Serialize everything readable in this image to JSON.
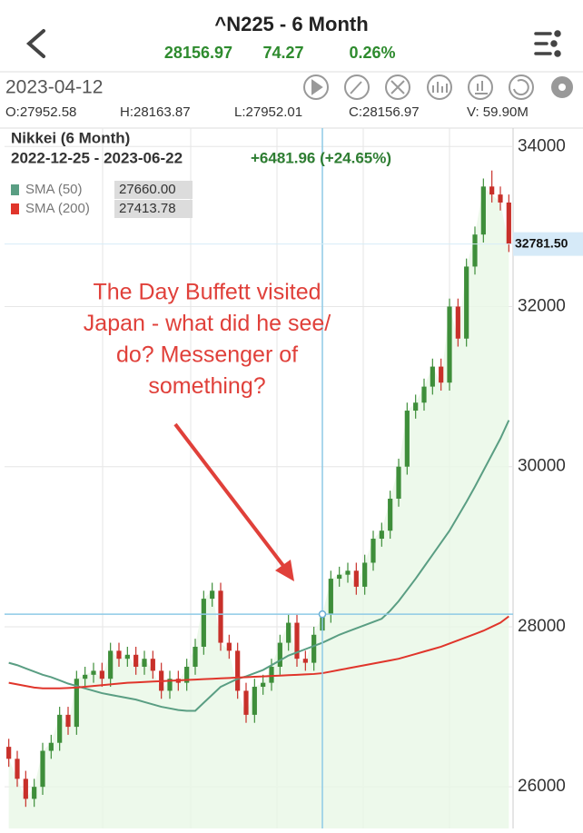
{
  "header": {
    "title": "^N225 - 6 Month",
    "price": "28156.97",
    "change": "74.27",
    "change_pct": "0.26%"
  },
  "toolbar": {
    "date": "2023-04-12",
    "ohlc": [
      "O:27952.58",
      "H:28163.87",
      "L:27952.01",
      "C:28156.97",
      "V: 59.90M"
    ]
  },
  "chart_data": {
    "type": "candlestick",
    "title": "Nikkei (6 Month)",
    "subtitle": "2022-12-25 - 2023-06-22",
    "period_change": "+6481.96 (+24.65%)",
    "annotation": [
      "The Day Buffett visited",
      "Japan - what did he see/",
      "do? Messenger of",
      "something?"
    ],
    "up_color": "#3e8e3a",
    "down_color": "#c8302a",
    "open": [
      26500,
      26350,
      26100,
      25850,
      26000,
      26450,
      26550,
      26900,
      26750,
      27350,
      27400,
      27450,
      27350,
      27700,
      27600,
      27650,
      27500,
      27600,
      27450,
      27200,
      27350,
      27300,
      27500,
      27750,
      28350,
      28450,
      27800,
      27700,
      27200,
      26900,
      27250,
      27300,
      27500,
      27800,
      28050,
      27600,
      27550,
      27952.58,
      28157,
      28600,
      28650,
      28700,
      28500,
      28800,
      29100,
      29200,
      29600,
      30000,
      30700,
      30800,
      31000,
      31250,
      31050,
      32000,
      31600,
      32500,
      32900,
      33500,
      33400,
      33300
    ],
    "high": [
      26600,
      26450,
      26200,
      26100,
      26550,
      26650,
      27000,
      27000,
      27450,
      27500,
      27550,
      27550,
      27800,
      27800,
      27750,
      27750,
      27700,
      27700,
      27550,
      27450,
      27450,
      27600,
      27850,
      28450,
      28550,
      28550,
      27900,
      27800,
      27300,
      27350,
      27400,
      27600,
      27900,
      28150,
      28150,
      27700,
      28000,
      28163.87,
      28700,
      28750,
      28800,
      28800,
      28900,
      29200,
      29300,
      29700,
      30100,
      30800,
      30900,
      31100,
      31350,
      31350,
      32100,
      32100,
      32600,
      33000,
      33600,
      33700,
      33500,
      33400
    ],
    "low": [
      26250,
      26000,
      25750,
      25750,
      25900,
      26350,
      26450,
      26650,
      26650,
      27250,
      27300,
      27250,
      27250,
      27500,
      27500,
      27400,
      27400,
      27350,
      27100,
      27100,
      27200,
      27200,
      27400,
      27650,
      28250,
      27700,
      27600,
      27100,
      26800,
      26800,
      27150,
      27200,
      27400,
      27700,
      27500,
      27450,
      27450,
      27952.01,
      28050,
      28500,
      28550,
      28400,
      28400,
      28700,
      29000,
      29100,
      29500,
      29900,
      30600,
      30700,
      30900,
      30950,
      30950,
      31500,
      31500,
      32400,
      32800,
      33300,
      33200,
      32681.5
    ],
    "close": [
      26350,
      26100,
      25850,
      26000,
      26450,
      26550,
      26900,
      26750,
      27350,
      27400,
      27450,
      27350,
      27700,
      27600,
      27650,
      27500,
      27600,
      27450,
      27200,
      27350,
      27300,
      27500,
      27750,
      28350,
      28450,
      27800,
      27700,
      27200,
      26900,
      27250,
      27300,
      27500,
      27800,
      28050,
      27600,
      27550,
      27900,
      28156.97,
      28600,
      28650,
      28700,
      28500,
      28800,
      29100,
      29200,
      29600,
      30000,
      30700,
      30800,
      31000,
      31250,
      31050,
      32000,
      31600,
      32500,
      32900,
      33500,
      33400,
      33300,
      32781.5
    ],
    "series": [
      {
        "name": "SMA (50)",
        "color": "#5a9e83",
        "legend_value": "27660.00",
        "values": [
          27550,
          27520,
          27480,
          27440,
          27400,
          27370,
          27330,
          27290,
          27260,
          27230,
          27200,
          27170,
          27150,
          27130,
          27110,
          27090,
          27060,
          27030,
          27000,
          26980,
          26960,
          26950,
          26950,
          27050,
          27150,
          27250,
          27300,
          27350,
          27380,
          27420,
          27460,
          27520,
          27580,
          27640,
          27680,
          27720,
          27760,
          27800,
          27850,
          27900,
          27940,
          27980,
          28020,
          28060,
          28100,
          28200,
          28320,
          28460,
          28600,
          28750,
          28900,
          29050,
          29200,
          29380,
          29560,
          29750,
          29950,
          30150,
          30350,
          30580
        ]
      },
      {
        "name": "SMA (200)",
        "color": "#e0352b",
        "legend_value": "27413.78",
        "values": [
          27300,
          27280,
          27260,
          27240,
          27230,
          27230,
          27230,
          27235,
          27240,
          27250,
          27260,
          27270,
          27280,
          27290,
          27300,
          27305,
          27310,
          27315,
          27320,
          27325,
          27330,
          27335,
          27340,
          27345,
          27350,
          27355,
          27360,
          27365,
          27370,
          27375,
          27380,
          27385,
          27390,
          27395,
          27400,
          27405,
          27410,
          27420,
          27440,
          27460,
          27480,
          27500,
          27520,
          27540,
          27560,
          27580,
          27600,
          27630,
          27660,
          27690,
          27720,
          27750,
          27790,
          27830,
          27870,
          27910,
          27950,
          28000,
          28050,
          28130
        ]
      }
    ],
    "price_tag": {
      "value": 32781.5,
      "label": "32781.50"
    },
    "ylim": [
      25480,
      34230
    ],
    "yticks": [
      26000,
      28000,
      30000,
      32000,
      34000
    ],
    "grid": true
  }
}
